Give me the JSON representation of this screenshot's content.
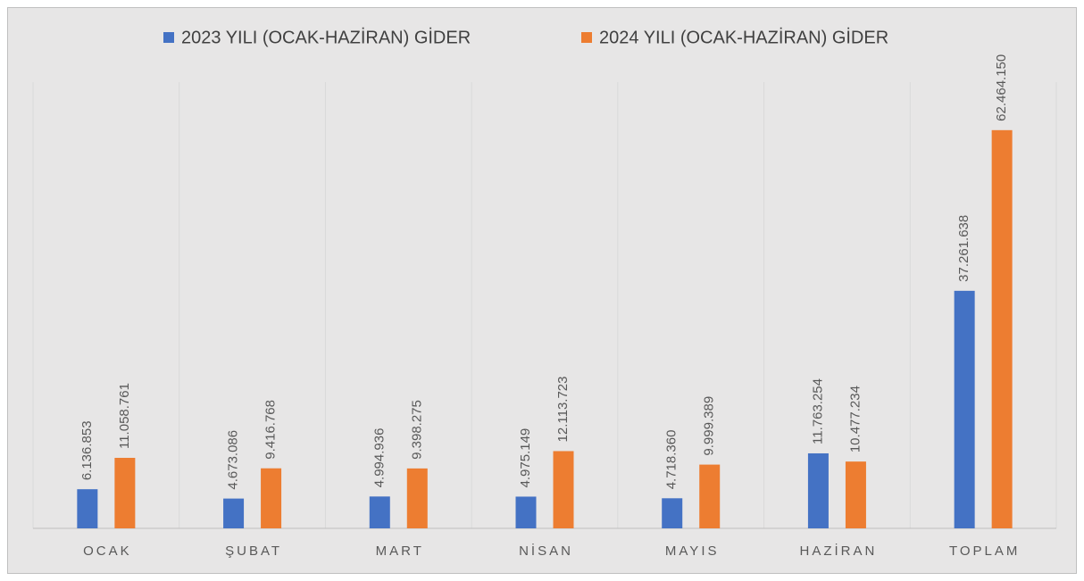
{
  "chart_data": {
    "type": "bar",
    "categories": [
      "OCAK",
      "ŞUBAT",
      "MART",
      "NİSAN",
      "MAYIS",
      "HAZİRAN",
      "TOPLAM"
    ],
    "series": [
      {
        "name": "2023 YILI (OCAK-HAZİRAN) GİDER",
        "color": "#4472c4",
        "values": [
          6136853,
          4673086,
          4994936,
          4975149,
          4718360,
          11763254,
          37261638
        ],
        "value_labels": [
          "6.136.853",
          "4.673.086",
          "4.994.936",
          "4.975.149",
          "4.718.360",
          "11.763.254",
          "37.261.638"
        ]
      },
      {
        "name": "2024 YILI (OCAK-HAZİRAN) GİDER",
        "color": "#ed7d31",
        "values": [
          11058761,
          9416768,
          9398275,
          12113723,
          9999389,
          10477234,
          62464150
        ],
        "value_labels": [
          "11.058.761",
          "9.416.768",
          "9.398.275",
          "12.113.723",
          "9.999.389",
          "10.477.234",
          "62.464.150"
        ]
      }
    ],
    "ylim": [
      0,
      70000000
    ],
    "legend": "top"
  }
}
